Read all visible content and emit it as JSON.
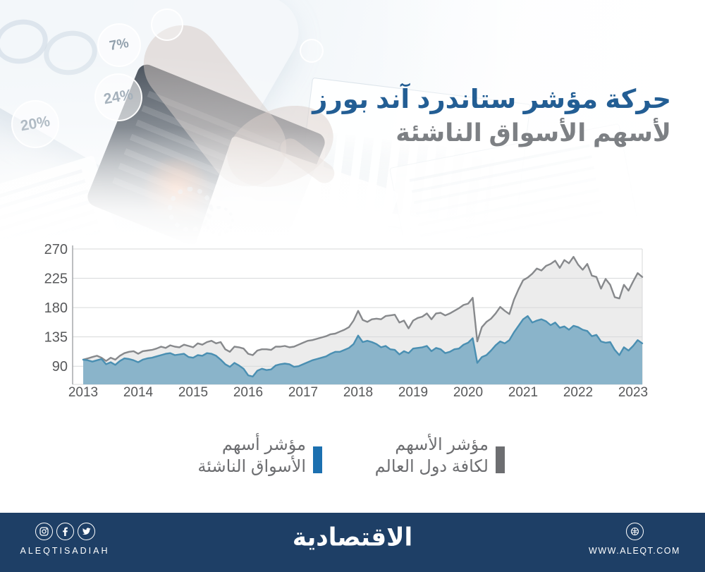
{
  "header": {
    "title_line1": "حركة مؤشر ستاندرد آند بورز",
    "title_line2": "لأسهم الأسواق الناشئة",
    "title_color": "#235e94",
    "subtitle_color": "#7d8084",
    "photo_percents": [
      "7%",
      "24%",
      "20%"
    ]
  },
  "chart_data": {
    "type": "area",
    "title": "حركة مؤشر ستاندرد آند بورز لأسهم الأسواق الناشئة",
    "x_unit": "month",
    "x_start": "2013-01",
    "x_end": "2023-03",
    "x_tick_labels": [
      "2013",
      "2014",
      "2015",
      "2016",
      "2017",
      "2018",
      "2019",
      "2020",
      "2021",
      "2022",
      "2023"
    ],
    "y_ticks": [
      90,
      135,
      180,
      225,
      270
    ],
    "ylim": [
      62,
      270
    ],
    "grid": true,
    "legend_position": "bottom",
    "series": [
      {
        "name": "مؤشر الأسهم لكافة دول العالم",
        "line_color": "#87898c",
        "fill_color": "#ececec",
        "values": [
          100,
          102,
          104,
          106,
          103,
          98,
          103,
          100,
          106,
          110,
          112,
          113,
          109,
          113,
          114,
          115,
          117,
          120,
          118,
          122,
          120,
          119,
          123,
          121,
          119,
          125,
          123,
          127,
          129,
          125,
          127,
          116,
          112,
          120,
          119,
          117,
          109,
          107,
          114,
          116,
          116,
          115,
          120,
          120,
          121,
          119,
          120,
          123,
          126,
          129,
          130,
          132,
          134,
          136,
          139,
          140,
          143,
          146,
          150,
          160,
          175,
          161,
          158,
          162,
          163,
          162,
          167,
          168,
          169,
          157,
          160,
          148,
          160,
          164,
          166,
          171,
          162,
          171,
          172,
          168,
          171,
          175,
          179,
          184,
          186,
          195,
          128,
          150,
          158,
          163,
          171,
          181,
          175,
          170,
          192,
          208,
          222,
          226,
          232,
          240,
          237,
          244,
          247,
          252,
          241,
          253,
          248,
          258,
          246,
          238,
          247,
          229,
          227,
          209,
          224,
          215,
          196,
          194,
          215,
          206,
          220,
          233,
          227
        ]
      },
      {
        "name": "مؤشر أسهم الأسواق الناشئة",
        "line_color": "#4a8fb2",
        "fill_color": "#8ab4ca",
        "values": [
          100,
          99,
          97,
          99,
          101,
          93,
          96,
          92,
          98,
          102,
          101,
          99,
          96,
          100,
          102,
          103,
          105,
          107,
          109,
          110,
          107,
          108,
          109,
          104,
          103,
          107,
          106,
          110,
          109,
          106,
          100,
          93,
          89,
          95,
          91,
          86,
          76,
          74,
          83,
          86,
          84,
          85,
          91,
          93,
          94,
          93,
          89,
          90,
          93,
          96,
          99,
          101,
          103,
          105,
          109,
          112,
          112,
          115,
          118,
          124,
          137,
          127,
          129,
          127,
          124,
          119,
          121,
          116,
          115,
          108,
          113,
          110,
          117,
          118,
          119,
          121,
          113,
          118,
          116,
          110,
          112,
          116,
          117,
          123,
          126,
          133,
          95,
          104,
          107,
          114,
          122,
          128,
          125,
          130,
          142,
          152,
          162,
          167,
          157,
          160,
          162,
          159,
          153,
          157,
          149,
          151,
          146,
          152,
          150,
          146,
          144,
          136,
          138,
          128,
          126,
          127,
          115,
          107,
          119,
          114,
          121,
          130,
          125
        ]
      }
    ]
  },
  "legend": {
    "text_color": "#6d6e71",
    "items": [
      {
        "id": "emerging",
        "line1": "مؤشر أسهم",
        "line2": "الأسواق الناشئة",
        "marker_color": "#1c70b0"
      },
      {
        "id": "world",
        "line1": "مؤشر الأسهم",
        "line2": "لكافة دول العالم",
        "marker_color": "#6d6e71"
      }
    ]
  },
  "footer": {
    "bg_color": "#1e3f66",
    "brand": "الاقتصادية",
    "social_handle": "ALEQTISADIAH",
    "website": "WWW.ALEQT.COM",
    "icons": [
      "instagram-icon",
      "facebook-icon",
      "twitter-icon",
      "globe-icon"
    ]
  }
}
